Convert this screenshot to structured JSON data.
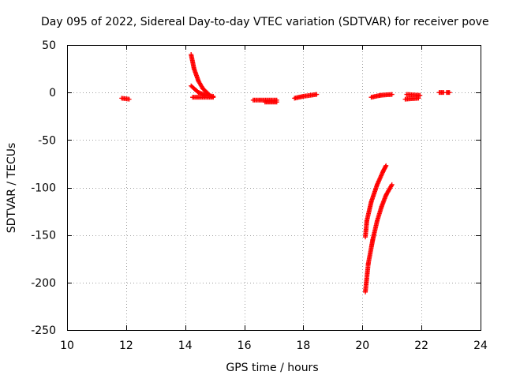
{
  "chart_data": {
    "type": "scatter",
    "title": "Day 095 of 2022, Sidereal Day-to-day VTEC variation (SDTVAR) for receiver pove",
    "xlabel": "GPS time / hours",
    "ylabel": "SDTVAR / TECUs",
    "xlim": [
      10,
      24
    ],
    "ylim": [
      -250,
      50
    ],
    "xticks": [
      10,
      12,
      14,
      16,
      18,
      20,
      22,
      24
    ],
    "yticks": [
      50,
      0,
      -50,
      -100,
      -150,
      -200,
      -250
    ],
    "grid": true,
    "marker": "+",
    "color": "#ff0000",
    "series": [
      {
        "name": "SDTVAR",
        "segments": [
          {
            "x": [
              11.85,
              12.1
            ],
            "y": [
              -6,
              -7
            ]
          },
          {
            "x": [
              14.2,
              14.3,
              14.45,
              14.6,
              14.8
            ],
            "y": [
              40,
              25,
              12,
              4,
              -2
            ]
          },
          {
            "x": [
              14.2,
              14.45,
              14.7,
              14.95
            ],
            "y": [
              7,
              0,
              -3,
              -4
            ]
          },
          {
            "x": [
              14.25,
              14.95
            ],
            "y": [
              -5,
              -5
            ]
          },
          {
            "x": [
              16.3,
              17.1
            ],
            "y": [
              -8,
              -8
            ]
          },
          {
            "x": [
              16.7,
              17.1
            ],
            "y": [
              -10,
              -10
            ]
          },
          {
            "x": [
              17.7,
              18.0,
              18.45
            ],
            "y": [
              -6,
              -4,
              -2
            ]
          },
          {
            "x": [
              20.3,
              20.6,
              21.0
            ],
            "y": [
              -5,
              -3,
              -2
            ]
          },
          {
            "x": [
              21.5,
              21.95
            ],
            "y": [
              -2,
              -3
            ]
          },
          {
            "x": [
              21.45,
              21.9
            ],
            "y": [
              -7,
              -6
            ]
          },
          {
            "x": [
              22.6,
              22.75
            ],
            "y": [
              0,
              0
            ]
          },
          {
            "x": [
              22.85,
              22.95
            ],
            "y": [
              0,
              0
            ]
          },
          {
            "x": [
              20.1,
              20.15,
              20.3,
              20.5,
              20.7,
              20.8
            ],
            "y": [
              -152,
              -135,
              -115,
              -97,
              -83,
              -77
            ]
          },
          {
            "x": [
              20.1,
              20.2,
              20.35,
              20.5,
              20.65,
              20.8,
              21.0
            ],
            "y": [
              -210,
              -180,
              -155,
              -135,
              -120,
              -108,
              -97
            ]
          }
        ]
      }
    ]
  }
}
